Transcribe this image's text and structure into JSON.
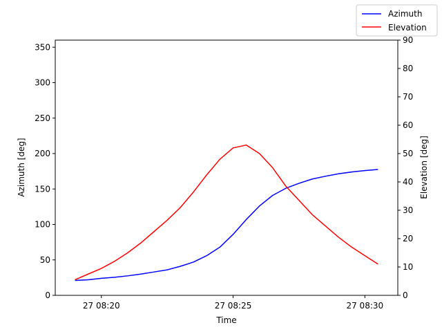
{
  "chart_data": {
    "type": "line",
    "xlabel": "Time",
    "ylabel_left": "Azimuth [deg]",
    "ylabel_right": "Elevation [deg]",
    "x_ticks": [
      "27 08:20",
      "27 08:25",
      "27 08:30"
    ],
    "ylim_left": [
      0,
      360
    ],
    "ylim_right": [
      0,
      90
    ],
    "y_ticks_left": [
      "0",
      "50",
      "100",
      "150",
      "200",
      "250",
      "300",
      "350"
    ],
    "y_ticks_right": [
      "0",
      "10",
      "20",
      "30",
      "40",
      "50",
      "60",
      "70",
      "80",
      "90"
    ],
    "legend_position": "top-right",
    "grid": false,
    "x_time_range": [
      "27 08:19:00",
      "27 08:30:30"
    ],
    "series": [
      {
        "name": "Azimuth",
        "axis": "left",
        "color": "#0000ff",
        "x": [
          "08:19:00",
          "08:19:30",
          "08:20:00",
          "08:20:30",
          "08:21:00",
          "08:21:30",
          "08:22:00",
          "08:22:30",
          "08:23:00",
          "08:23:30",
          "08:24:00",
          "08:24:30",
          "08:25:00",
          "08:25:30",
          "08:26:00",
          "08:26:30",
          "08:27:00",
          "08:27:30",
          "08:28:00",
          "08:28:30",
          "08:29:00",
          "08:29:30",
          "08:30:00",
          "08:30:30"
        ],
        "y": [
          21,
          22,
          24,
          25.5,
          27.5,
          30,
          33,
          36,
          41,
          47,
          56,
          68,
          86,
          107,
          126,
          141,
          151,
          158,
          164,
          168,
          171.5,
          174,
          176,
          177.5
        ]
      },
      {
        "name": "Elevation",
        "axis": "right",
        "color": "#ff0000",
        "x": [
          "08:19:00",
          "08:19:30",
          "08:20:00",
          "08:20:30",
          "08:21:00",
          "08:21:30",
          "08:22:00",
          "08:22:30",
          "08:23:00",
          "08:23:30",
          "08:24:00",
          "08:24:30",
          "08:25:00",
          "08:25:30",
          "08:26:00",
          "08:26:30",
          "08:27:00",
          "08:27:30",
          "08:28:00",
          "08:28:30",
          "08:29:00",
          "08:29:30",
          "08:30:00",
          "08:30:30"
        ],
        "y": [
          5.5,
          7.5,
          9.5,
          12,
          15,
          18.5,
          22.5,
          26.5,
          31,
          36.5,
          42.5,
          48,
          52,
          53,
          50,
          45,
          38.5,
          33.5,
          28.5,
          24.5,
          20.5,
          17,
          14,
          11
        ]
      }
    ]
  }
}
